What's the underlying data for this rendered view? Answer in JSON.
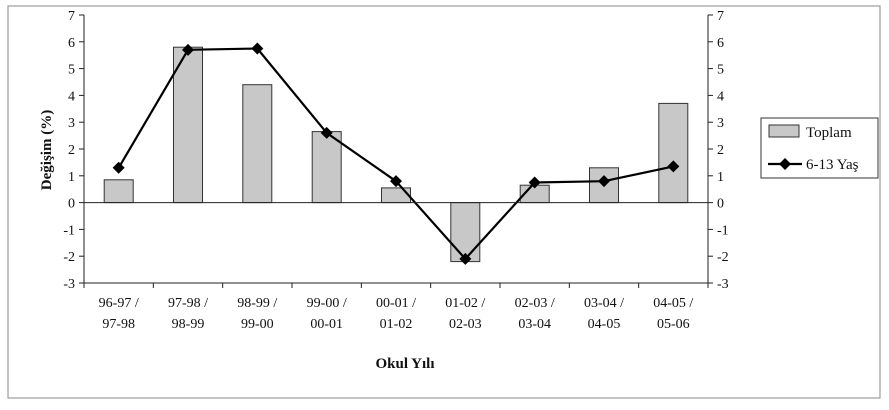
{
  "chart_data": {
    "type": "bar",
    "categories": [
      [
        "96-97 /",
        "97-98"
      ],
      [
        "97-98 /",
        "98-99"
      ],
      [
        "98-99 /",
        "99-00"
      ],
      [
        "99-00 /",
        "00-01"
      ],
      [
        "00-01 /",
        "01-02"
      ],
      [
        "01-02 /",
        "02-03"
      ],
      [
        "02-03 /",
        "03-04"
      ],
      [
        "03-04 /",
        "04-05"
      ],
      [
        "04-05 /",
        "05-06"
      ]
    ],
    "series": [
      {
        "name": "Toplam",
        "type": "bar",
        "values": [
          0.85,
          5.8,
          4.4,
          2.65,
          0.55,
          -2.2,
          0.65,
          1.3,
          3.7
        ]
      },
      {
        "name": "6-13 Yaş",
        "type": "line",
        "values": [
          1.3,
          5.7,
          5.75,
          2.6,
          0.8,
          -2.1,
          0.75,
          0.8,
          1.35
        ]
      }
    ],
    "xlabel": "Okul Yılı",
    "ylabel": "Değişim (%)",
    "ylim": [
      -3,
      7
    ],
    "yticks": [
      "-3",
      "-2",
      "-1",
      "0",
      "1",
      "2",
      "3",
      "4",
      "5",
      "6",
      "7"
    ],
    "grid": false,
    "legend": "right",
    "colors": {
      "bar_fill": "#c8c8c8",
      "bar_stroke": "#333333",
      "line": "#000000",
      "axis": "#222222"
    }
  }
}
